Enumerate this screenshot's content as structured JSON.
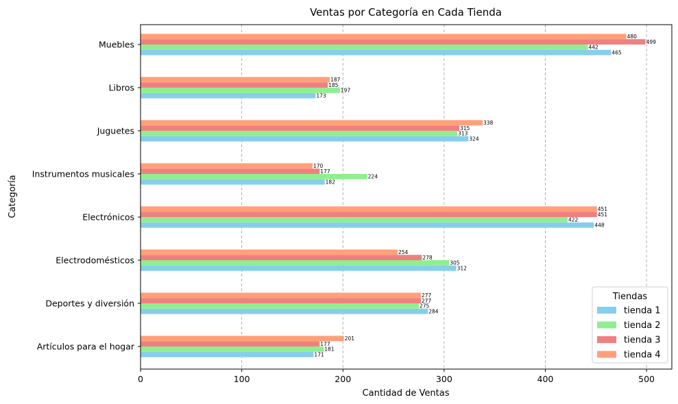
{
  "chart_data": {
    "type": "bar",
    "orientation": "horizontal",
    "title": "Ventas por Categoría en Cada Tienda",
    "xlabel": "Cantidad de Ventas",
    "ylabel": "Categoría",
    "xlim": [
      0,
      525
    ],
    "xticks": [
      0,
      100,
      200,
      300,
      400,
      500
    ],
    "grid": "x-dashed",
    "legend": {
      "title": "Tiendas",
      "placement": "lower-right"
    },
    "categories": [
      "Artículos para el hogar",
      "Deportes y diversión",
      "Electrodomésticos",
      "Electrónicos",
      "Instrumentos musicales",
      "Juguetes",
      "Libros",
      "Muebles"
    ],
    "series": [
      {
        "name": "tienda 1",
        "color": "#87CEEB",
        "values": [
          171,
          284,
          312,
          448,
          182,
          324,
          173,
          465
        ]
      },
      {
        "name": "tienda 2",
        "color": "#90EE90",
        "values": [
          181,
          275,
          305,
          422,
          224,
          313,
          197,
          442
        ]
      },
      {
        "name": "tienda 3",
        "color": "#F08080",
        "values": [
          177,
          277,
          278,
          451,
          177,
          315,
          185,
          499
        ]
      },
      {
        "name": "tienda 4",
        "color": "#FFA07A",
        "values": [
          201,
          277,
          254,
          451,
          170,
          338,
          187,
          480
        ]
      }
    ]
  }
}
